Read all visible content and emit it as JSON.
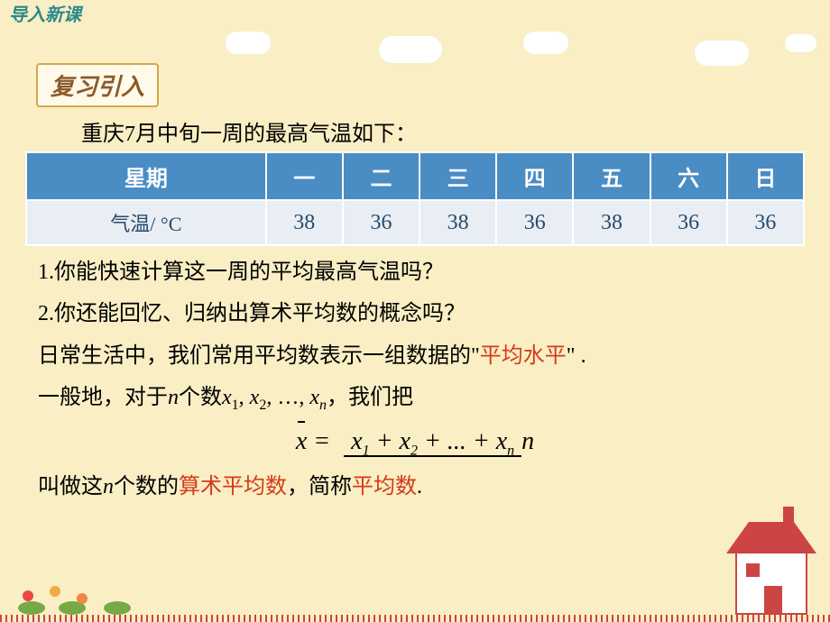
{
  "header": "导入新课",
  "review_label": "复习引入",
  "intro": "重庆7月中旬一周的最高气温如下：",
  "table": {
    "headers": [
      "星期",
      "一",
      "二",
      "三",
      "四",
      "五",
      "六",
      "日"
    ],
    "row_label": "气温/ °C",
    "values": [
      38,
      36,
      38,
      36,
      38,
      36,
      36
    ],
    "header_bg": "#4a8cc4",
    "header_color": "#ffffff",
    "cell_bg": "#e8eef4",
    "cell_color": "#2a4a6a",
    "border_color": "#ffffff"
  },
  "q1": "1.你能快速计算这一周的平均最高气温吗？",
  "q2": "2.你还能回忆、归纳出算术平均数的概念吗？",
  "p1_a": "日常生活中，我们常用平均数表示一组数据的\"",
  "p1_red": "平均水平",
  "p1_b": "\" .",
  "p2_a": "一般地，对于",
  "p2_n": "n",
  "p2_b": "个数",
  "p2_x1": "x",
  "p2_s1": "1",
  "p2_x2": "x",
  "p2_s2": "2",
  "p2_dots": ", …, ",
  "p2_xn": "x",
  "p2_sn": "n",
  "p2_c": "，我们把",
  "formula": {
    "lhs": "x",
    "eq": " = ",
    "num_parts": [
      "x",
      "1",
      " + ",
      "x",
      "2",
      " + ... + ",
      "x",
      "n"
    ],
    "den": "n"
  },
  "p3_a": "叫做这",
  "p3_n": "n",
  "p3_b": "个数的",
  "p3_red1": "算术平均数",
  "p3_c": "，简称",
  "p3_red2": "平均数",
  "p3_d": ".",
  "colors": {
    "bg": "#f9eec4",
    "header_text": "#2a8a8a",
    "accent_red": "#d63a1a",
    "box_border": "#d4a84a",
    "box_bg": "#fffaea",
    "box_text": "#8a5a2a"
  }
}
